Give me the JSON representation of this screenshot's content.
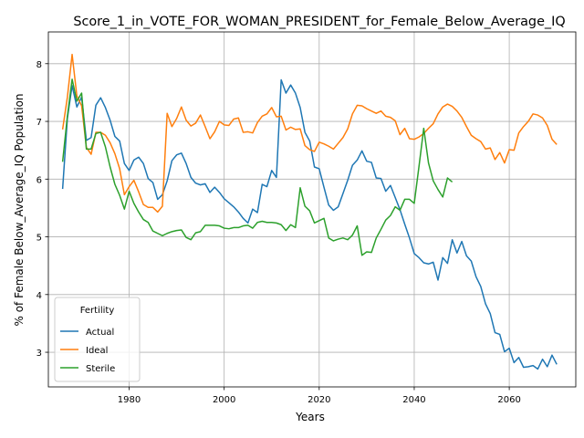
{
  "chart_data": {
    "type": "line",
    "title": "Score_1_in_VOTE_FOR_WOMAN_PRESIDENT_for_Female_Below_Average_IQ",
    "xlabel": "Years",
    "ylabel": "% of Female Below_Average_IQ Population",
    "xlim": [
      1963,
      2074
    ],
    "ylim": [
      2.4,
      8.55
    ],
    "xticks": [
      1980,
      2000,
      2020,
      2040,
      2060
    ],
    "yticks": [
      3,
      4,
      5,
      6,
      7,
      8
    ],
    "grid": true,
    "legend": {
      "title": "Fertility",
      "placement": "lower-left"
    },
    "series": [
      {
        "name": "Actual",
        "color": "#1f77b4",
        "x": [
          1966,
          1967,
          1968,
          1969,
          1970,
          1971,
          1972,
          1973,
          1974,
          1975,
          1976,
          1977,
          1978,
          1979,
          1980,
          1981,
          1982,
          1983,
          1984,
          1985,
          1986,
          1987,
          1988,
          1989,
          1990,
          1991,
          1992,
          1993,
          1994,
          1995,
          1996,
          1997,
          1998,
          1999,
          2000,
          2001,
          2002,
          2003,
          2004,
          2005,
          2006,
          2007,
          2008,
          2009,
          2010,
          2011,
          2012,
          2013,
          2014,
          2015,
          2016,
          2017,
          2018,
          2019,
          2020,
          2021,
          2022,
          2023,
          2024,
          2025,
          2026,
          2027,
          2028,
          2029,
          2030,
          2031,
          2032,
          2033,
          2034,
          2035,
          2036,
          2037,
          2038,
          2039,
          2040,
          2041,
          2042,
          2043,
          2044,
          2045,
          2046,
          2047,
          2048,
          2049,
          2050,
          2051,
          2052,
          2053,
          2054,
          2055,
          2056,
          2057,
          2058,
          2059,
          2060,
          2061,
          2062,
          2063,
          2064,
          2065,
          2066,
          2067,
          2068,
          2069,
          2070
        ],
        "values": [
          5.83,
          7.05,
          7.62,
          7.25,
          7.42,
          6.67,
          6.72,
          7.28,
          7.41,
          7.24,
          7.02,
          6.74,
          6.66,
          6.27,
          6.15,
          6.33,
          6.38,
          6.27,
          6.01,
          5.94,
          5.65,
          5.73,
          5.97,
          6.32,
          6.42,
          6.45,
          6.27,
          6.03,
          5.93,
          5.9,
          5.92,
          5.77,
          5.86,
          5.77,
          5.66,
          5.59,
          5.52,
          5.43,
          5.32,
          5.24,
          5.48,
          5.42,
          5.91,
          5.87,
          6.15,
          6.03,
          7.72,
          7.49,
          7.63,
          7.49,
          7.24,
          6.81,
          6.66,
          6.21,
          6.18,
          5.86,
          5.55,
          5.46,
          5.52,
          5.75,
          5.98,
          6.24,
          6.33,
          6.49,
          6.31,
          6.29,
          6.02,
          6.01,
          5.79,
          5.89,
          5.68,
          5.47,
          5.22,
          4.98,
          4.71,
          4.64,
          4.55,
          4.53,
          4.56,
          4.25,
          4.64,
          4.54,
          4.95,
          4.72,
          4.92,
          4.67,
          4.58,
          4.31,
          4.14,
          3.84,
          3.67,
          3.34,
          3.31,
          3.01,
          3.07,
          2.82,
          2.91,
          2.74,
          2.75,
          2.77,
          2.71,
          2.88,
          2.75,
          2.95,
          2.79
        ]
      },
      {
        "name": "Ideal",
        "color": "#ff7f0e",
        "x": [
          1966,
          1967,
          1968,
          1969,
          1970,
          1971,
          1972,
          1973,
          1974,
          1975,
          1976,
          1977,
          1978,
          1979,
          1980,
          1981,
          1982,
          1983,
          1984,
          1985,
          1986,
          1987,
          1988,
          1989,
          1990,
          1991,
          1992,
          1993,
          1994,
          1995,
          1996,
          1997,
          1998,
          1999,
          2000,
          2001,
          2002,
          2003,
          2004,
          2005,
          2006,
          2007,
          2008,
          2009,
          2010,
          2011,
          2012,
          2013,
          2014,
          2015,
          2016,
          2017,
          2018,
          2019,
          2020,
          2021,
          2022,
          2023,
          2024,
          2025,
          2026,
          2027,
          2028,
          2029,
          2030,
          2031,
          2032,
          2033,
          2034,
          2035,
          2036,
          2037,
          2038,
          2039,
          2040,
          2041,
          2042,
          2043,
          2044,
          2045,
          2046,
          2047,
          2048,
          2049,
          2050,
          2051,
          2052,
          2053,
          2054,
          2055,
          2056,
          2057,
          2058,
          2059,
          2060,
          2061,
          2062,
          2063,
          2064,
          2065,
          2066,
          2067,
          2068,
          2069,
          2070
        ],
        "values": [
          6.86,
          7.42,
          8.16,
          7.44,
          7.27,
          6.55,
          6.43,
          6.81,
          6.81,
          6.76,
          6.63,
          6.44,
          6.18,
          5.73,
          5.87,
          5.98,
          5.78,
          5.56,
          5.51,
          5.51,
          5.43,
          5.53,
          7.14,
          6.91,
          7.05,
          7.25,
          7.02,
          6.92,
          6.97,
          7.11,
          6.91,
          6.7,
          6.82,
          7.0,
          6.94,
          6.93,
          7.04,
          7.06,
          6.81,
          6.82,
          6.8,
          6.98,
          7.09,
          7.13,
          7.24,
          7.08,
          7.09,
          6.85,
          6.9,
          6.86,
          6.87,
          6.58,
          6.51,
          6.48,
          6.64,
          6.61,
          6.57,
          6.52,
          6.62,
          6.72,
          6.87,
          7.13,
          7.28,
          7.27,
          7.22,
          7.18,
          7.14,
          7.18,
          7.09,
          7.07,
          7.01,
          6.77,
          6.88,
          6.7,
          6.69,
          6.73,
          6.79,
          6.88,
          6.96,
          7.13,
          7.25,
          7.3,
          7.26,
          7.18,
          7.07,
          6.91,
          6.76,
          6.7,
          6.65,
          6.52,
          6.54,
          6.34,
          6.46,
          6.28,
          6.51,
          6.5,
          6.8,
          6.91,
          7.0,
          7.13,
          7.11,
          7.06,
          6.93,
          6.69,
          6.6
        ]
      },
      {
        "name": "Sterile",
        "color": "#2ca02c",
        "x": [
          1966,
          1967,
          1968,
          1969,
          1970,
          1971,
          1972,
          1973,
          1974,
          1975,
          1976,
          1977,
          1978,
          1979,
          1980,
          1981,
          1982,
          1983,
          1984,
          1985,
          1986,
          1987,
          1988,
          1989,
          1990,
          1991,
          1992,
          1993,
          1994,
          1995,
          1996,
          1997,
          1998,
          1999,
          2000,
          2001,
          2002,
          2003,
          2004,
          2005,
          2006,
          2007,
          2008,
          2009,
          2010,
          2011,
          2012,
          2013,
          2014,
          2015,
          2016,
          2017,
          2018,
          2019,
          2020,
          2021,
          2022,
          2023,
          2024,
          2025,
          2026,
          2027,
          2028,
          2029,
          2030,
          2031,
          2032,
          2033,
          2034,
          2035,
          2036,
          2037,
          2038,
          2039,
          2040,
          2041,
          2042,
          2043,
          2044,
          2045,
          2046,
          2047,
          2048
        ],
        "values": [
          6.3,
          7.09,
          7.73,
          7.35,
          7.49,
          6.52,
          6.52,
          6.79,
          6.81,
          6.56,
          6.21,
          5.91,
          5.72,
          5.48,
          5.79,
          5.58,
          5.43,
          5.3,
          5.25,
          5.1,
          5.06,
          5.02,
          5.06,
          5.09,
          5.11,
          5.12,
          4.99,
          4.95,
          5.07,
          5.09,
          5.2,
          5.2,
          5.2,
          5.19,
          5.15,
          5.14,
          5.16,
          5.16,
          5.19,
          5.2,
          5.15,
          5.25,
          5.27,
          5.25,
          5.25,
          5.24,
          5.21,
          5.11,
          5.21,
          5.16,
          5.85,
          5.53,
          5.45,
          5.24,
          5.28,
          5.32,
          4.98,
          4.93,
          4.96,
          4.98,
          4.95,
          5.03,
          5.19,
          4.68,
          4.74,
          4.73,
          4.98,
          5.13,
          5.29,
          5.37,
          5.52,
          5.46,
          5.65,
          5.65,
          5.58,
          6.22,
          6.88,
          6.28,
          5.97,
          5.82,
          5.69,
          6.02,
          5.95
        ]
      }
    ]
  }
}
